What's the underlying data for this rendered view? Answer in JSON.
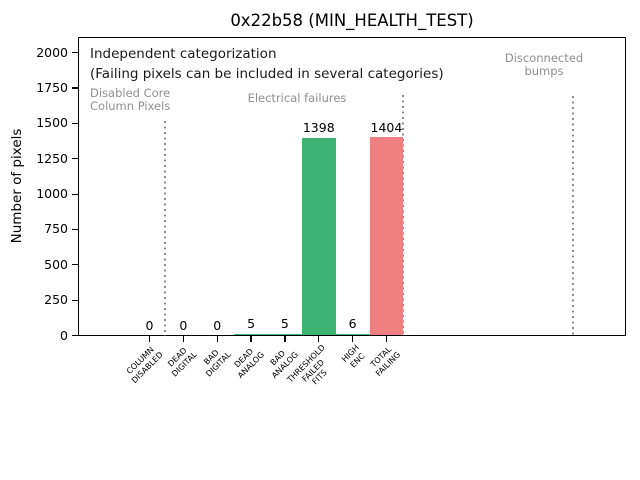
{
  "chart_data": {
    "type": "bar",
    "title": "0x22b58 (MIN_HEALTH_TEST)",
    "ylabel": "Number of pixels",
    "xlabel": "",
    "categories": [
      [
        "COLUMN",
        "DISABLED"
      ],
      [
        "DEAD",
        "DIGITAL"
      ],
      [
        "BAD",
        "DIGITAL"
      ],
      [
        "DEAD",
        "ANALOG"
      ],
      [
        "BAD",
        "ANALOG"
      ],
      [
        "THRESHOLD",
        "FAILED",
        "FITS"
      ],
      [
        "HIGH",
        "ENC"
      ],
      [
        "TOTAL",
        "FAILING"
      ]
    ],
    "values": [
      0,
      0,
      0,
      5,
      5,
      1398,
      6,
      1404
    ],
    "value_labels": [
      "0",
      "0",
      "0",
      "5",
      "5",
      "1398",
      "6",
      "1404"
    ],
    "bar_colors": [
      "#3cb371",
      "#3cb371",
      "#3cb371",
      "#3cb371",
      "#3cb371",
      "#3cb371",
      "#3cb371",
      "#f08080"
    ],
    "ylim": [
      0,
      2100
    ],
    "yticks": [
      0,
      250,
      500,
      750,
      1000,
      1250,
      1500,
      1750,
      2000
    ],
    "grid": false,
    "legend": "none",
    "notes": [
      "Independent categorization",
      "(Failing pixels can be included in several categories)"
    ],
    "section_labels": [
      {
        "lines": [
          "Disabled Core",
          "Column Pixels"
        ]
      },
      {
        "lines": [
          "Electrical failures"
        ]
      },
      {
        "lines": [
          "Disconnected",
          "bumps"
        ]
      }
    ],
    "colors": {
      "bar_green": "#3cb371",
      "bar_red": "#f08080",
      "gray_text": "#8f8f8f",
      "separator": "#8a8a8a",
      "axis": "#000000",
      "background": "#ffffff"
    }
  }
}
